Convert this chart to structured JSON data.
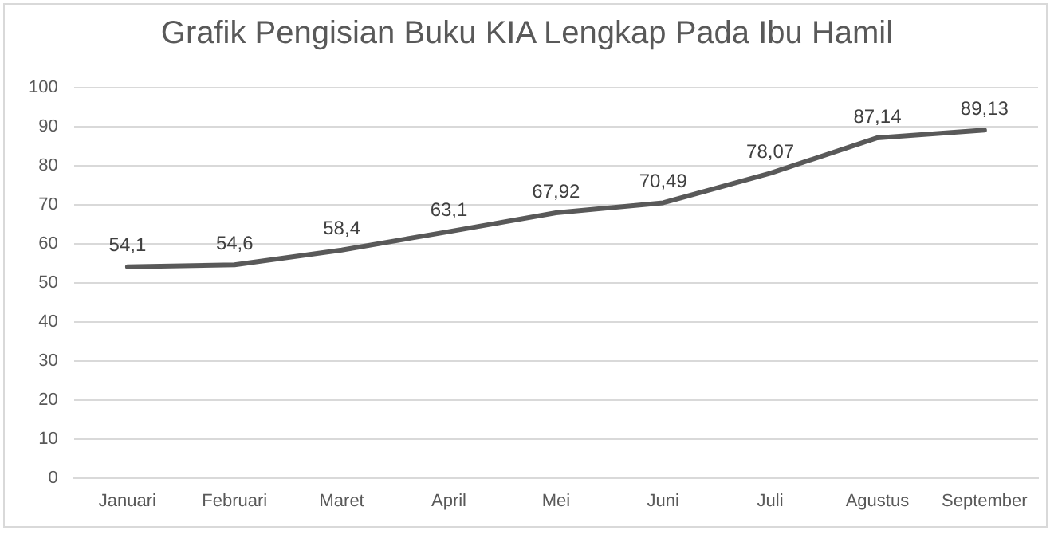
{
  "chart_data": {
    "type": "line",
    "title": "Grafik Pengisian Buku KIA Lengkap Pada Ibu Hamil",
    "categories": [
      "Januari",
      "Februari",
      "Maret",
      "April",
      "Mei",
      "Juni",
      "Juli",
      "Agustus",
      "September"
    ],
    "series": [
      {
        "color": "#595959",
        "values": [
          54.1,
          54.6,
          58.4,
          63.1,
          67.92,
          70.49,
          78.07,
          87.14,
          89.13
        ]
      }
    ],
    "value_labels": [
      "54,1",
      "54,6",
      "58,4",
      "63,1",
      "67,92",
      "70,49",
      "78,07",
      "87,14",
      "89,13"
    ],
    "ylim": [
      0,
      100
    ],
    "yticks": [
      0,
      10,
      20,
      30,
      40,
      50,
      60,
      70,
      80,
      90,
      100
    ],
    "grid": "y",
    "legend": false,
    "marker": "none",
    "line_style": "solid"
  }
}
